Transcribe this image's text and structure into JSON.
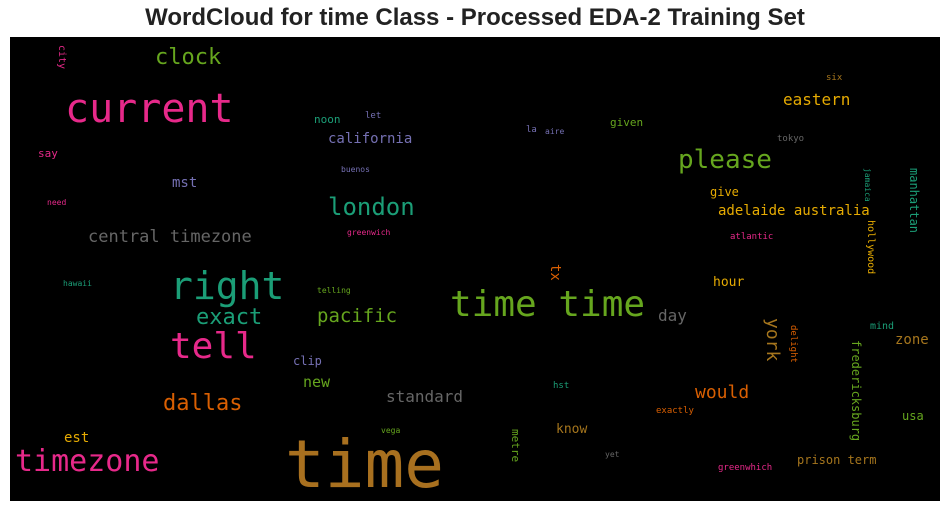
{
  "chart_data": {
    "type": "wordcloud",
    "title": "WordCloud for time Class - Processed EDA-2 Training Set",
    "words": [
      {
        "text": "time",
        "color": "#a8701f"
      },
      {
        "text": "current",
        "color": "#e7298a"
      },
      {
        "text": "time time",
        "color": "#66a61e"
      },
      {
        "text": "right",
        "color": "#1b9e77"
      },
      {
        "text": "tell",
        "color": "#e7298a"
      },
      {
        "text": "timezone",
        "color": "#e7298a"
      },
      {
        "text": "please",
        "color": "#66a61e"
      },
      {
        "text": "london",
        "color": "#1b9e77"
      },
      {
        "text": "clock",
        "color": "#66a61e"
      },
      {
        "text": "exact",
        "color": "#1b9e77"
      },
      {
        "text": "dallas",
        "color": "#d95f02"
      },
      {
        "text": "central timezone",
        "color": "#666666"
      },
      {
        "text": "pacific",
        "color": "#66a61e"
      },
      {
        "text": "eastern",
        "color": "#e6ab02"
      },
      {
        "text": "would",
        "color": "#d95f02"
      },
      {
        "text": "york",
        "color": "#a6761d"
      },
      {
        "text": "standard",
        "color": "#666666"
      },
      {
        "text": "adelaide australia",
        "color": "#e6ab02"
      },
      {
        "text": "day",
        "color": "#666666"
      },
      {
        "text": "california",
        "color": "#7570b3"
      },
      {
        "text": "new",
        "color": "#66a61e"
      },
      {
        "text": "mst",
        "color": "#7570b3"
      },
      {
        "text": "zone",
        "color": "#a6761d"
      },
      {
        "text": "know",
        "color": "#a6761d"
      },
      {
        "text": "prison term",
        "color": "#a6761d"
      },
      {
        "text": "est",
        "color": "#e6ab02"
      },
      {
        "text": "fredericksburg",
        "color": "#66a61e"
      },
      {
        "text": "manhattan",
        "color": "#1b9e77"
      },
      {
        "text": "tx",
        "color": "#d95f02"
      },
      {
        "text": "hour",
        "color": "#e6ab02"
      },
      {
        "text": "give",
        "color": "#e6ab02"
      },
      {
        "text": "metre",
        "color": "#66a61e"
      },
      {
        "text": "clip",
        "color": "#7570b3"
      },
      {
        "text": "usa",
        "color": "#66a61e"
      },
      {
        "text": "given",
        "color": "#66a61e"
      },
      {
        "text": "noon",
        "color": "#1b9e77"
      },
      {
        "text": "say",
        "color": "#e7298a"
      },
      {
        "text": "city",
        "color": "#e7298a"
      },
      {
        "text": "hollywood",
        "color": "#e6ab02"
      },
      {
        "text": "mind",
        "color": "#1b9e77"
      },
      {
        "text": "delight",
        "color": "#d95f02"
      },
      {
        "text": "exactly",
        "color": "#d95f02"
      },
      {
        "text": "greenwhich",
        "color": "#e7298a"
      },
      {
        "text": "jamaica",
        "color": "#1b9e77"
      },
      {
        "text": "atlantic",
        "color": "#e7298a"
      },
      {
        "text": "tokyo",
        "color": "#666666"
      },
      {
        "text": "six",
        "color": "#a6761d"
      },
      {
        "text": "let",
        "color": "#7570b3"
      },
      {
        "text": "la",
        "color": "#7570b3"
      },
      {
        "text": "aire",
        "color": "#7570b3"
      },
      {
        "text": "buenos",
        "color": "#7570b3"
      },
      {
        "text": "greenwich",
        "color": "#e7298a"
      },
      {
        "text": "telling",
        "color": "#66a61e"
      },
      {
        "text": "hawaii",
        "color": "#1b9e77"
      },
      {
        "text": "need",
        "color": "#e7298a"
      },
      {
        "text": "hst",
        "color": "#1b9e77"
      },
      {
        "text": "vega",
        "color": "#66a61e"
      },
      {
        "text": "yet",
        "color": "#666666"
      }
    ]
  }
}
